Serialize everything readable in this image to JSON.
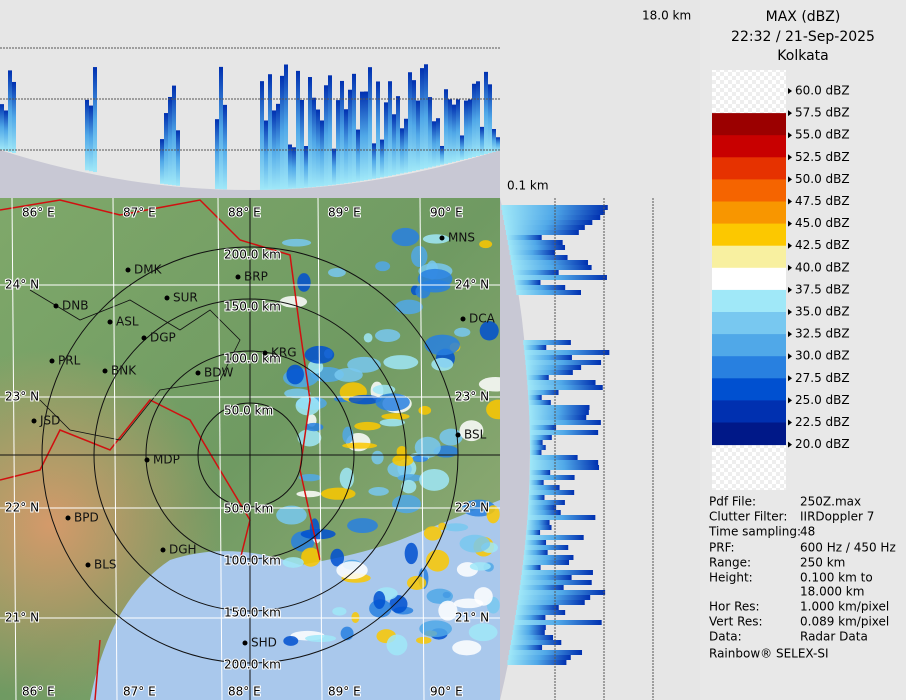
{
  "header": {
    "height_top": "18.0 km",
    "title": "MAX (dBZ)",
    "datetime": "22:32 / 21-Sep-2025",
    "station": "Kolkata",
    "height_bottom": "0.1 km"
  },
  "legend": {
    "levels": [
      "60.0 dBZ",
      "57.5 dBZ",
      "55.0 dBZ",
      "52.5 dBZ",
      "50.0 dBZ",
      "47.5 dBZ",
      "45.0 dBZ",
      "42.5 dBZ",
      "40.0 dBZ",
      "37.5 dBZ",
      "35.0 dBZ",
      "32.5 dBZ",
      "30.0 dBZ",
      "27.5 dBZ",
      "25.0 dBZ",
      "22.5 dBZ",
      "20.0 dBZ"
    ],
    "colors": [
      "#ffffff",
      "#9b0000",
      "#c80000",
      "#e63200",
      "#f56400",
      "#f89600",
      "#fcc800",
      "#f8f0a0",
      "#ffffff",
      "#a0e8f8",
      "#78c8f0",
      "#50a8e8",
      "#2880e0",
      "#0050d0",
      "#0030b0",
      "#001888"
    ]
  },
  "info": {
    "rows": [
      [
        "Pdf File:",
        "250Z.max"
      ],
      [
        "Clutter Filter:",
        "IIRDoppler 7"
      ],
      [
        "Time sampling:",
        "48"
      ],
      [
        "PRF:",
        "600 Hz / 450 Hz"
      ],
      [
        "Range:",
        "250 km"
      ],
      [
        "Height:",
        "0.100 km to"
      ],
      [
        "",
        "18.000 km"
      ],
      [
        "Hor Res:",
        "1.000 km/pixel"
      ],
      [
        "Vert Res:",
        "0.089 km/pixel"
      ],
      [
        "Data:",
        "Radar Data"
      ]
    ],
    "footer": "Rainbow® SELEX-SI"
  },
  "map": {
    "lon_labels": [
      "86° E",
      "87° E",
      "88° E",
      "89° E",
      "90° E"
    ],
    "lat_labels": [
      "24° N",
      "23° N",
      "22° N",
      "21° N"
    ],
    "range_labels": [
      "50.0 km",
      "100.0 km",
      "150.0 km",
      "200.0 km"
    ],
    "cities": [
      "MNS",
      "DMK",
      "BRP",
      "DNB",
      "SUR",
      "ASL",
      "DGP",
      "DCA",
      "KRG",
      "PRL",
      "BNK",
      "BDW",
      "JSD",
      "BSL",
      "MDP",
      "BPD",
      "DGH",
      "BLS",
      "SHD"
    ]
  }
}
